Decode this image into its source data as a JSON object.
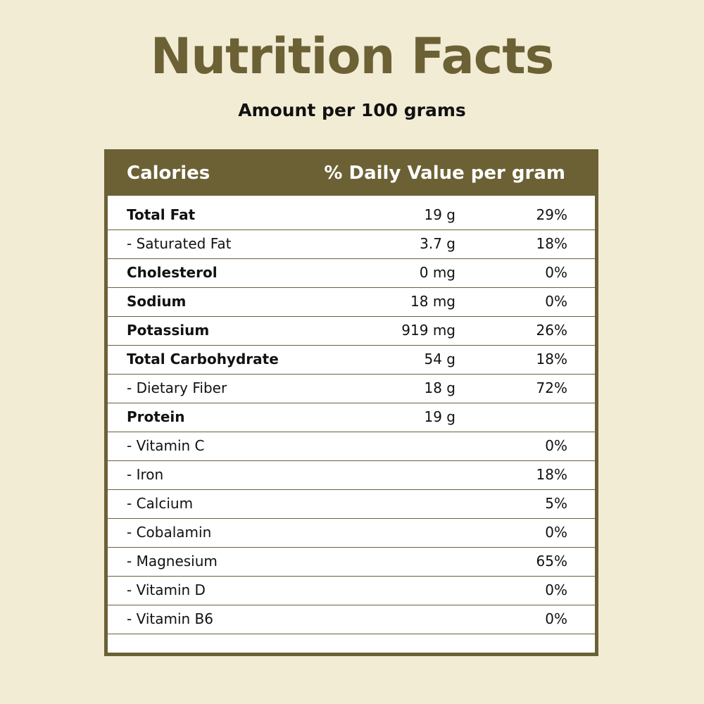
{
  "title": "Nutrition Facts",
  "subtitle": "Amount per 100 grams",
  "colors": {
    "accent": "#6b6135",
    "background": "#f2ecd5"
  },
  "table": {
    "header": {
      "left": "Calories",
      "right": "% Daily Value per gram"
    },
    "rows": [
      {
        "label": "Total Fat",
        "amount": "19 g",
        "percent": "29%",
        "bold": true
      },
      {
        "label": "- Saturated Fat",
        "amount": "3.7 g",
        "percent": "18%",
        "bold": false
      },
      {
        "label": "Cholesterol",
        "amount": "0 mg",
        "percent": "0%",
        "bold": true
      },
      {
        "label": "Sodium",
        "amount": "18 mg",
        "percent": "0%",
        "bold": true
      },
      {
        "label": "Potassium",
        "amount": "919 mg",
        "percent": "26%",
        "bold": true
      },
      {
        "label": "Total Carbohydrate",
        "amount": "54 g",
        "percent": "18%",
        "bold": true
      },
      {
        "label": "- Dietary Fiber",
        "amount": "18 g",
        "percent": "72%",
        "bold": false
      },
      {
        "label": "Protein",
        "amount": "19 g",
        "percent": "",
        "bold": true
      },
      {
        "label": "- Vitamin C",
        "amount": "",
        "percent": "0%",
        "bold": false
      },
      {
        "label": "- Iron",
        "amount": "",
        "percent": "18%",
        "bold": false
      },
      {
        "label": "- Calcium",
        "amount": "",
        "percent": "5%",
        "bold": false
      },
      {
        "label": "- Cobalamin",
        "amount": "",
        "percent": "0%",
        "bold": false
      },
      {
        "label": "- Magnesium",
        "amount": "",
        "percent": "65%",
        "bold": false
      },
      {
        "label": "- Vitamin D",
        "amount": "",
        "percent": "0%",
        "bold": false
      },
      {
        "label": "- Vitamin B6",
        "amount": "",
        "percent": "0%",
        "bold": false
      }
    ]
  }
}
